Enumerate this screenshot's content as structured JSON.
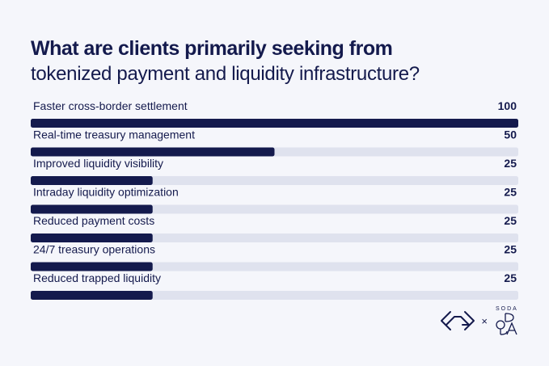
{
  "title": {
    "line1": "What are clients primarily seeking from",
    "line2": "tokenized payment and liquidity infrastructure?"
  },
  "chart_data": {
    "type": "bar",
    "orientation": "horizontal",
    "categories": [
      "Faster cross-border settlement",
      "Real-time treasury management",
      "Improved liquidity visibility",
      "Intraday liquidity optimization",
      "Reduced payment costs",
      "24/7 treasury operations",
      "Reduced trapped liquidity"
    ],
    "values": [
      100,
      50,
      25,
      25,
      25,
      25,
      25
    ],
    "title": "What are clients primarily seeking from tokenized payment and liquidity infrastructure?",
    "xlim": [
      0,
      100
    ],
    "grid": false,
    "legend": "none"
  },
  "footer": {
    "separator": "×",
    "brand_text": "SODA"
  },
  "colors": {
    "background": "#f5f6fb",
    "bar_fill": "#141a4d",
    "bar_track": "#dfe2ee",
    "text": "#141a4d"
  }
}
